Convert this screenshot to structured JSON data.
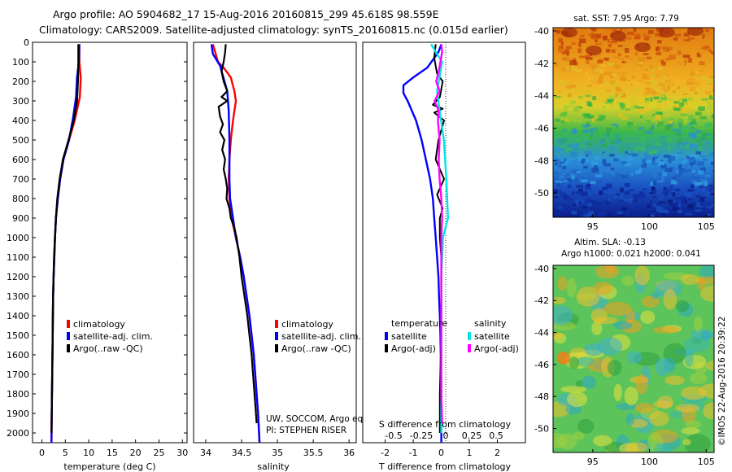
{
  "header": {
    "line1": "Argo profile: AO 5904682_17 15-Aug-2016 20160815_299 45.618S 98.559E",
    "line2": "Climatology: CARS2009. Satellite-adjusted climatology: synTS_20160815.nc (0.015d earlier)"
  },
  "map_titles": {
    "sst": "sat. SST: 7.95 Argo: 7.79",
    "sla_line1": "Altim. SLA: -0.13",
    "sla_line2": "Argo h1000: 0.021 h2000: 0.041"
  },
  "footer": {
    "watermark": "©IMOS 22-Aug-2016 20:39:22",
    "credits_line1": "UW, SOCCOM, Argo equivalent",
    "credits_line2": "PI: STEPHEN RISER"
  },
  "colors": {
    "climatology": "#ff0000",
    "satellite": "#0000ff",
    "argo": "#000000",
    "salinity_satellite": "#00e5e5",
    "salinity_argo": "#ff00ff"
  },
  "chart_data": [
    {
      "id": "temperature",
      "type": "line",
      "xlabel": "temperature (deg C)",
      "ylabel": "",
      "xlim": [
        -2,
        31
      ],
      "ylim": [
        2050,
        0
      ],
      "xticks": [
        "0",
        "5",
        "10",
        "15",
        "20",
        "25",
        "30"
      ],
      "yticks": [
        "0",
        "100",
        "200",
        "300",
        "400",
        "500",
        "600",
        "700",
        "800",
        "900",
        "1000",
        "1100",
        "1200",
        "1300",
        "1400",
        "1500",
        "1600",
        "1700",
        "1800",
        "1900",
        "2000"
      ],
      "legend": [
        "climatology",
        "satellite-adj. clim.",
        "Argo(..raw -QC)"
      ],
      "series": [
        {
          "name": "climatology",
          "points": [
            [
              8.0,
              10
            ],
            [
              8.0,
              100
            ],
            [
              8.3,
              180
            ],
            [
              8.1,
              280
            ],
            [
              7.0,
              400
            ],
            [
              5.8,
              500
            ],
            [
              4.6,
              600
            ],
            [
              3.9,
              700
            ],
            [
              3.4,
              800
            ],
            [
              3.0,
              900
            ],
            [
              2.8,
              1000
            ],
            [
              2.65,
              1100
            ],
            [
              2.5,
              1200
            ],
            [
              2.4,
              1300
            ],
            [
              2.35,
              1400
            ],
            [
              2.3,
              1500
            ],
            [
              2.25,
              1600
            ],
            [
              2.2,
              1700
            ],
            [
              2.15,
              1800
            ],
            [
              2.1,
              1900
            ],
            [
              2.05,
              2050
            ]
          ]
        },
        {
          "name": "satellite-adj. clim.",
          "points": [
            [
              8.0,
              10
            ],
            [
              7.9,
              100
            ],
            [
              7.5,
              180
            ],
            [
              7.3,
              280
            ],
            [
              6.7,
              380
            ],
            [
              5.8,
              500
            ],
            [
              4.6,
              600
            ],
            [
              3.9,
              700
            ],
            [
              3.4,
              800
            ],
            [
              3.0,
              900
            ],
            [
              2.8,
              1000
            ],
            [
              2.65,
              1100
            ],
            [
              2.5,
              1200
            ],
            [
              2.4,
              1300
            ],
            [
              2.35,
              1400
            ],
            [
              2.3,
              1500
            ],
            [
              2.25,
              1600
            ],
            [
              2.2,
              1700
            ],
            [
              2.15,
              1800
            ],
            [
              2.1,
              1900
            ],
            [
              2.05,
              2050
            ]
          ]
        },
        {
          "name": "Argo(..raw -QC)",
          "points": [
            [
              7.8,
              10
            ],
            [
              7.8,
              100
            ],
            [
              7.7,
              200
            ],
            [
              7.5,
              300
            ],
            [
              6.8,
              400
            ],
            [
              5.7,
              500
            ],
            [
              4.5,
              600
            ],
            [
              3.8,
              700
            ],
            [
              3.3,
              800
            ],
            [
              3.0,
              900
            ],
            [
              2.8,
              1000
            ],
            [
              2.6,
              1100
            ],
            [
              2.5,
              1200
            ],
            [
              2.4,
              1300
            ],
            [
              2.35,
              1400
            ],
            [
              2.3,
              1500
            ],
            [
              2.25,
              1600
            ],
            [
              2.2,
              1700
            ],
            [
              2.15,
              1800
            ],
            [
              2.1,
              1900
            ],
            [
              2.05,
              2000
            ]
          ]
        }
      ]
    },
    {
      "id": "salinity",
      "type": "line",
      "xlabel": "salinity",
      "ylabel": "",
      "xlim": [
        33.83,
        36.1
      ],
      "ylim": [
        2050,
        0
      ],
      "xticks": [
        "34",
        "34.5",
        "35",
        "35.5",
        "36"
      ],
      "legend": [
        "climatology",
        "satellite-adj. clim.",
        "Argo(..raw -QC)"
      ],
      "series": [
        {
          "name": "climatology",
          "points": [
            [
              34.1,
              10
            ],
            [
              34.17,
              100
            ],
            [
              34.25,
              130
            ],
            [
              34.35,
              180
            ],
            [
              34.4,
              250
            ],
            [
              34.42,
              300
            ],
            [
              34.38,
              400
            ],
            [
              34.35,
              500
            ],
            [
              34.33,
              600
            ],
            [
              34.32,
              700
            ],
            [
              34.33,
              800
            ],
            [
              34.36,
              900
            ],
            [
              34.42,
              1000
            ],
            [
              34.48,
              1100
            ],
            [
              34.53,
              1200
            ],
            [
              34.57,
              1300
            ],
            [
              34.61,
              1400
            ],
            [
              34.64,
              1500
            ],
            [
              34.67,
              1600
            ],
            [
              34.69,
              1700
            ],
            [
              34.71,
              1800
            ],
            [
              34.73,
              1900
            ],
            [
              34.75,
              2050
            ]
          ]
        },
        {
          "name": "satellite-adj. clim.",
          "points": [
            [
              34.08,
              10
            ],
            [
              34.1,
              60
            ],
            [
              34.2,
              120
            ],
            [
              34.3,
              250
            ],
            [
              34.32,
              350
            ],
            [
              34.33,
              500
            ],
            [
              34.33,
              600
            ],
            [
              34.33,
              700
            ],
            [
              34.34,
              800
            ],
            [
              34.38,
              900
            ],
            [
              34.42,
              1000
            ],
            [
              34.48,
              1100
            ],
            [
              34.53,
              1200
            ],
            [
              34.57,
              1300
            ],
            [
              34.61,
              1400
            ],
            [
              34.64,
              1500
            ],
            [
              34.67,
              1600
            ],
            [
              34.69,
              1700
            ],
            [
              34.71,
              1800
            ],
            [
              34.73,
              1900
            ],
            [
              34.75,
              2050
            ]
          ]
        },
        {
          "name": "Argo(..raw -QC)",
          "points": [
            [
              34.28,
              10
            ],
            [
              34.27,
              50
            ],
            [
              34.25,
              100
            ],
            [
              34.22,
              150
            ],
            [
              34.25,
              200
            ],
            [
              34.3,
              250
            ],
            [
              34.22,
              280
            ],
            [
              34.3,
              300
            ],
            [
              34.18,
              330
            ],
            [
              34.2,
              380
            ],
            [
              34.24,
              420
            ],
            [
              34.2,
              460
            ],
            [
              34.26,
              500
            ],
            [
              34.23,
              550
            ],
            [
              34.27,
              600
            ],
            [
              34.25,
              650
            ],
            [
              34.28,
              700
            ],
            [
              34.3,
              750
            ],
            [
              34.29,
              800
            ],
            [
              34.33,
              850
            ],
            [
              34.35,
              900
            ],
            [
              34.4,
              950
            ],
            [
              34.43,
              1000
            ],
            [
              34.47,
              1100
            ],
            [
              34.5,
              1200
            ],
            [
              34.54,
              1300
            ],
            [
              34.58,
              1400
            ],
            [
              34.61,
              1500
            ],
            [
              34.64,
              1600
            ],
            [
              34.66,
              1700
            ],
            [
              34.68,
              1800
            ],
            [
              34.7,
              1900
            ],
            [
              34.71,
              1950
            ]
          ]
        }
      ]
    },
    {
      "id": "difference",
      "type": "line",
      "xlabel": "T difference from climatology",
      "xlabel_top": "S difference from climatology",
      "xlim": [
        -2.8,
        3.0
      ],
      "ylim": [
        2050,
        0
      ],
      "xticks_T": [
        "-2",
        "-1",
        "0",
        "1",
        "2"
      ],
      "xticks_S": [
        "-0.5",
        "-0.25",
        "0",
        "0.25",
        "0.5"
      ],
      "legend_headers": [
        "temperature",
        "salinity"
      ],
      "legend": [
        "satellite",
        "Argo(-adj)",
        "satellite",
        "Argo(-adj)"
      ],
      "series": [
        {
          "name": "temperature satellite",
          "points": [
            [
              0,
              10
            ],
            [
              -0.1,
              50
            ],
            [
              -0.5,
              130
            ],
            [
              -1.0,
              180
            ],
            [
              -1.35,
              220
            ],
            [
              -1.35,
              260
            ],
            [
              -1.2,
              300
            ],
            [
              -0.9,
              400
            ],
            [
              -0.7,
              500
            ],
            [
              -0.55,
              600
            ],
            [
              -0.4,
              700
            ],
            [
              -0.3,
              800
            ],
            [
              -0.25,
              900
            ],
            [
              -0.2,
              1000
            ],
            [
              -0.15,
              1100
            ],
            [
              -0.1,
              1200
            ],
            [
              -0.08,
              1300
            ],
            [
              -0.05,
              1400
            ],
            [
              -0.03,
              1500
            ],
            [
              -0.02,
              1600
            ],
            [
              -0.01,
              1700
            ],
            [
              0,
              1800
            ],
            [
              0,
              1900
            ],
            [
              0,
              2050
            ]
          ]
        },
        {
          "name": "temperature Argo(-adj)",
          "points": [
            [
              -0.2,
              10
            ],
            [
              -0.25,
              80
            ],
            [
              -0.15,
              160
            ],
            [
              0.05,
              200
            ],
            [
              -0.05,
              280
            ],
            [
              -0.3,
              320
            ],
            [
              0.05,
              340
            ],
            [
              -0.25,
              360
            ],
            [
              0.1,
              400
            ],
            [
              -0.1,
              500
            ],
            [
              -0.2,
              600
            ],
            [
              0.1,
              700
            ],
            [
              -0.15,
              780
            ],
            [
              0.05,
              850
            ],
            [
              -0.05,
              900
            ],
            [
              -0.05,
              1000
            ],
            [
              0,
              1100
            ],
            [
              0,
              1500
            ],
            [
              -0.05,
              1800
            ],
            [
              -0.05,
              2000
            ]
          ]
        },
        {
          "name": "salinity satellite",
          "points": [
            [
              -0.12,
              10
            ],
            [
              -0.05,
              60
            ],
            [
              0.01,
              100
            ],
            [
              -0.05,
              250
            ],
            [
              -0.02,
              350
            ],
            [
              0.03,
              500
            ],
            [
              0.06,
              700
            ],
            [
              0.07,
              800
            ],
            [
              0.08,
              900
            ],
            [
              0.02,
              1000
            ],
            [
              0.0,
              1200
            ],
            [
              0.0,
              1500
            ],
            [
              0.0,
              2000
            ]
          ]
        },
        {
          "name": "salinity Argo(-adj)",
          "points": [
            [
              0.0,
              10
            ],
            [
              0.01,
              50
            ],
            [
              -0.01,
              100
            ],
            [
              -0.03,
              150
            ],
            [
              -0.06,
              200
            ],
            [
              -0.02,
              250
            ],
            [
              -0.08,
              300
            ],
            [
              -0.03,
              350
            ],
            [
              -0.04,
              400
            ],
            [
              -0.02,
              500
            ],
            [
              -0.03,
              600
            ],
            [
              -0.02,
              700
            ],
            [
              0.0,
              800
            ],
            [
              0.01,
              900
            ],
            [
              0.0,
              1000
            ],
            [
              0.0,
              1500
            ],
            [
              0.0,
              1800
            ],
            [
              0.01,
              1950
            ]
          ]
        }
      ]
    },
    {
      "id": "sst_map",
      "type": "heatmap",
      "title": "sat. SST: 7.95 Argo: 7.79",
      "xticks": [
        "95",
        "100",
        "105"
      ],
      "yticks": [
        "-40",
        "-42",
        "-44",
        "-46",
        "-48",
        "-50"
      ],
      "xlim": [
        91.5,
        105.7
      ],
      "ylim": [
        -51.5,
        -39.8
      ]
    },
    {
      "id": "sla_map",
      "type": "heatmap",
      "title": "Altim. SLA: -0.13",
      "subtitle": "Argo h1000: 0.021 h2000: 0.041",
      "xticks": [
        "95",
        "100",
        "105"
      ],
      "yticks": [
        "-40",
        "-42",
        "-44",
        "-46",
        "-48",
        "-50"
      ],
      "xlim": [
        91.5,
        105.7
      ],
      "ylim": [
        -51.5,
        -39.8
      ]
    }
  ]
}
